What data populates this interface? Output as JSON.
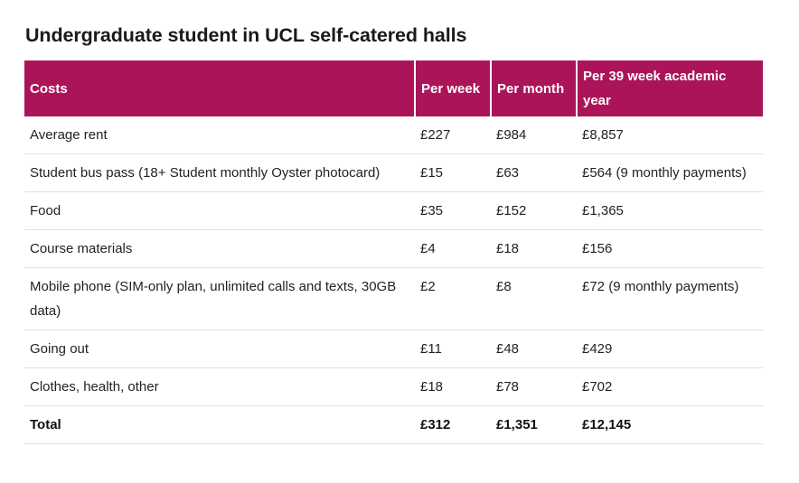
{
  "title": "Undergraduate student in UCL self-catered halls",
  "table": {
    "headers": [
      "Costs",
      "Per week",
      "Per month",
      "Per 39 week academic year"
    ],
    "rows": [
      [
        "Average rent",
        "£227",
        "£984",
        "£8,857"
      ],
      [
        "Student bus pass (18+ Student monthly Oyster photocard)",
        "£15",
        "£63",
        "£564 (9 monthly payments)"
      ],
      [
        "Food",
        "£35",
        "£152",
        "£1,365"
      ],
      [
        "Course materials",
        "£4",
        "£18",
        "£156"
      ],
      [
        "Mobile phone (SIM-only plan, unlimited calls and texts, 30GB data)",
        "£2",
        "£8",
        "£72 (9 monthly payments)"
      ],
      [
        "Going out",
        "£11",
        "£48",
        "£429"
      ],
      [
        "Clothes, health, other",
        "£18",
        "£78",
        "£702"
      ]
    ],
    "total": [
      "Total",
      "£312",
      "£1,351",
      "£12,145"
    ]
  },
  "colors": {
    "header_background": "#ac145a",
    "header_text": "#ffffff",
    "row_divider": "#e1e1e1"
  }
}
